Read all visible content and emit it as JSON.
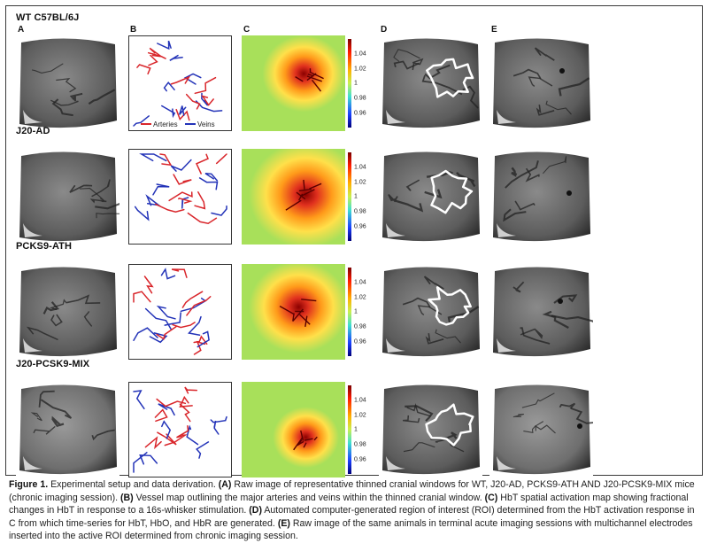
{
  "rows": [
    {
      "title": "WT C57BL/6J"
    },
    {
      "title": "J20-AD"
    },
    {
      "title": "PCKS9-ATH"
    },
    {
      "title": "J20-PCSK9-MIX"
    }
  ],
  "panel_letters": [
    "A",
    "B",
    "C",
    "D",
    "E"
  ],
  "legend": {
    "arteries": "Arteries",
    "veins": "Veins"
  },
  "colorbar_ticks": [
    "1.04",
    "1.02",
    "1",
    "0.98",
    "0.96"
  ],
  "colors": {
    "artery": "#d9262b",
    "vein": "#2333b8"
  },
  "caption": {
    "lead": "Figure 1.",
    "s1": " Experimental setup and data derivation. ",
    "a_tag": "(A)",
    "a_text": " Raw image of representative thinned cranial windows for WT, J20-AD, PCKS9-ATH AND J20-PCSK9-MIX mice (chronic imaging session). ",
    "b_tag": "(B)",
    "b_text": " Vessel map outlining the major arteries and veins within the thinned cranial window. ",
    "c_tag": "(C)",
    "c_text": " HbT spatial activation map showing fractional changes in HbT in response to a 16s-whisker stimulation. ",
    "d_tag": "(D)",
    "d_text": " Automated computer-generated region of interest (ROI) determined from the HbT activation response in C from which time-series for HbT, HbO, and HbR are generated. ",
    "e_tag": "(E)",
    "e_text": " Raw image of the same animals in terminal acute imaging sessions with multichannel electrodes inserted into the active ROI determined from chronic imaging session."
  }
}
